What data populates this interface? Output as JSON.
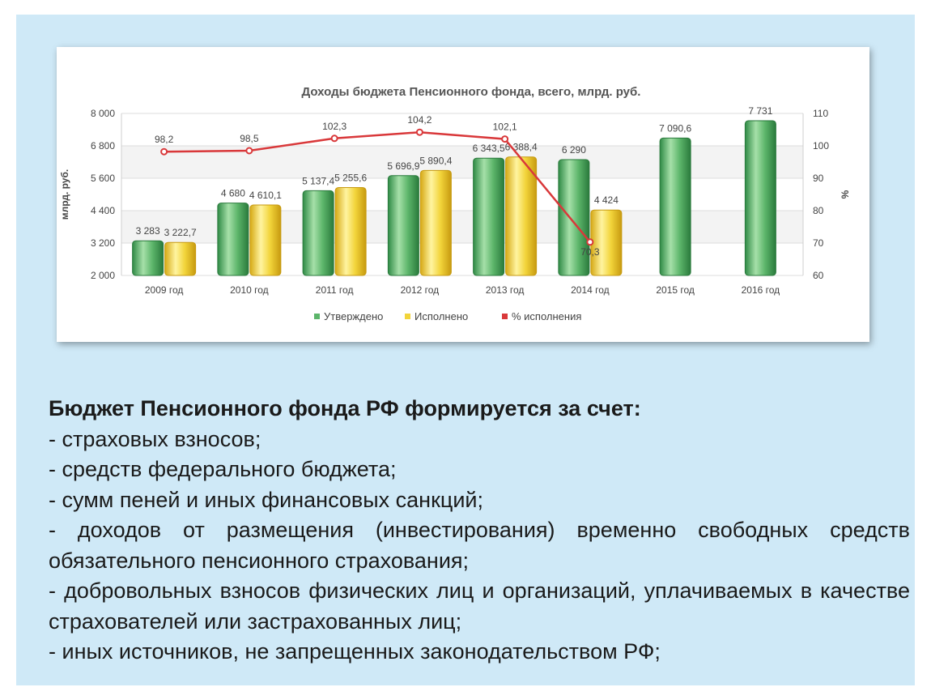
{
  "chart_data": {
    "type": "bar",
    "title": "Доходы бюджета Пенсионного фонда, всего, млрд. руб.",
    "ylabel": "млрд. руб.",
    "y2label": "%",
    "ylim": [
      2000,
      8000
    ],
    "y2lim": [
      60,
      110
    ],
    "yticks": [
      "2 000",
      "3 200",
      "4 400",
      "5 600",
      "6 800",
      "8 000"
    ],
    "y2ticks": [
      "60",
      "70",
      "80",
      "90",
      "100",
      "110"
    ],
    "grid": true,
    "legend_position": "bottom",
    "categories": [
      "2009 год",
      "2010 год",
      "2011 год",
      "2012 год",
      "2013 год",
      "2014 год",
      "2015 год",
      "2016 год"
    ],
    "series": [
      {
        "name": "Утверждено",
        "type": "bar",
        "color": "#5cb56a",
        "values": [
          3283,
          4680,
          5137.4,
          5696.9,
          6343.5,
          6290,
          7090.6,
          7731
        ],
        "labels": [
          "3 283",
          "4 680",
          "5 137,4",
          "5 696,9",
          "6 343,5",
          "6 290",
          "7 090,6",
          "7 731"
        ]
      },
      {
        "name": "Исполнено",
        "type": "bar",
        "color": "#f2d43a",
        "values": [
          3222.7,
          4610.1,
          5255.6,
          5890.4,
          6388.4,
          4424,
          null,
          null
        ],
        "labels": [
          "3 222,7",
          "4 610,1",
          "5 255,6",
          "5 890,4",
          "6 388,4",
          "4 424",
          "",
          ""
        ]
      },
      {
        "name": "% исполнения",
        "type": "line",
        "axis": "right",
        "color": "#d9383a",
        "values": [
          98.2,
          98.5,
          102.3,
          104.2,
          102.1,
          70.3,
          null,
          null
        ],
        "labels": [
          "98,2",
          "98,5",
          "102,3",
          "104,2",
          "102,1",
          "70,3",
          "",
          ""
        ]
      }
    ]
  },
  "text": {
    "heading": "Бюджет Пенсионного фонда РФ формируется за счет:",
    "items": [
      "- страховых взносов;",
      "- средств федерального бюджета;",
      "- сумм пеней и иных финансовых санкций;",
      "- доходов от размещения (инвестирования) временно свободных средств обязательного пенсионного страхования;",
      "- добровольных взносов физических лиц и организаций, уплачиваемых в качестве страхователей или застрахованных лиц;",
      "- иных источников, не запрещенных законодательством РФ;"
    ]
  }
}
